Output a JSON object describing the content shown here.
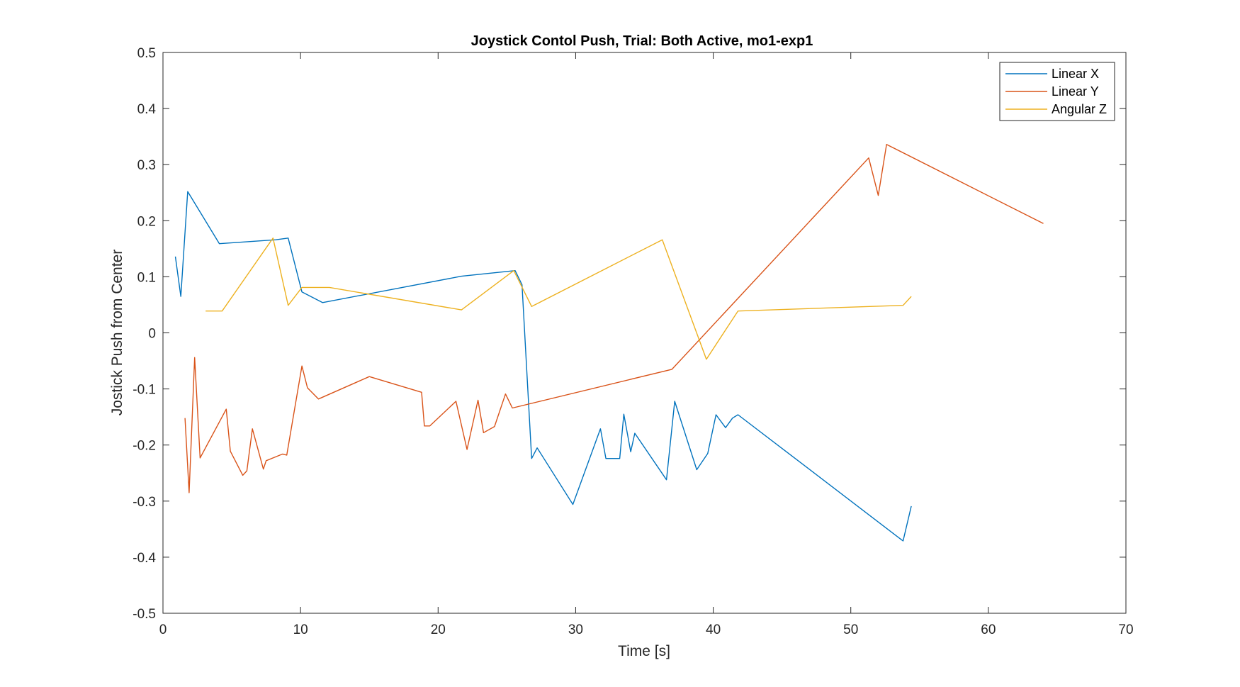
{
  "chart_data": {
    "type": "line",
    "title": "Joystick Contol Push,  Trial: Both Active, mo1-exp1",
    "xlabel": "Time [s]",
    "ylabel": "Jostick Push from Center",
    "xlim": [
      0,
      70
    ],
    "ylim": [
      -0.5,
      0.5
    ],
    "xticks": [
      0,
      10,
      20,
      30,
      40,
      50,
      60,
      70
    ],
    "yticks": [
      -0.5,
      -0.4,
      -0.3,
      -0.2,
      -0.1,
      0,
      0.1,
      0.2,
      0.3,
      0.4,
      0.5
    ],
    "xtick_labels": [
      "0",
      "10",
      "20",
      "30",
      "40",
      "50",
      "60",
      "70"
    ],
    "ytick_labels": [
      "-0.5",
      "-0.4",
      "-0.3",
      "-0.2",
      "-0.1",
      "0",
      "0.1",
      "0.2",
      "0.3",
      "0.4",
      "0.5"
    ],
    "grid": false,
    "legend_position": "top-right",
    "series": [
      {
        "name": "Linear X",
        "color": "#0072BD",
        "x": [
          0.9,
          1.3,
          1.8,
          4.1,
          8.2,
          9.1,
          10.1,
          11.6,
          21.7,
          25.6,
          26.1,
          26.8,
          27.2,
          29.8,
          31.8,
          32.2,
          33.2,
          33.5,
          34.0,
          34.3,
          36.6,
          37.2,
          38.8,
          39.6,
          40.2,
          40.9,
          41.4,
          41.8,
          53.8,
          54.4
        ],
        "y": [
          0.136,
          0.065,
          0.252,
          0.159,
          0.166,
          0.169,
          0.073,
          0.054,
          0.101,
          0.111,
          0.086,
          -0.224,
          -0.205,
          -0.306,
          -0.171,
          -0.224,
          -0.224,
          -0.145,
          -0.212,
          -0.179,
          -0.262,
          -0.122,
          -0.244,
          -0.215,
          -0.146,
          -0.169,
          -0.152,
          -0.146,
          -0.371,
          -0.309
        ]
      },
      {
        "name": "Linear Y",
        "color": "#D95319",
        "x": [
          1.6,
          1.9,
          2.3,
          2.7,
          4.6,
          4.9,
          5.8,
          6.1,
          6.5,
          7.3,
          7.5,
          8.7,
          9.0,
          10.1,
          10.5,
          11.3,
          15.0,
          18.8,
          19.0,
          19.4,
          21.3,
          22.1,
          22.9,
          23.3,
          24.1,
          24.9,
          25.4,
          37.0,
          51.3,
          52.0,
          52.6,
          64.0
        ],
        "y": [
          -0.152,
          -0.285,
          -0.044,
          -0.223,
          -0.136,
          -0.211,
          -0.254,
          -0.246,
          -0.171,
          -0.243,
          -0.228,
          -0.216,
          -0.218,
          -0.059,
          -0.098,
          -0.118,
          -0.078,
          -0.106,
          -0.166,
          -0.166,
          -0.122,
          -0.208,
          -0.12,
          -0.178,
          -0.167,
          -0.109,
          -0.134,
          -0.065,
          0.312,
          0.245,
          0.336,
          0.195
        ]
      },
      {
        "name": "Angular Z",
        "color": "#EDB120",
        "x": [
          3.1,
          4.3,
          8.0,
          9.1,
          10.1,
          12.1,
          21.7,
          25.5,
          26.8,
          36.3,
          39.5,
          41.8,
          53.8,
          54.4
        ],
        "y": [
          0.039,
          0.039,
          0.169,
          0.049,
          0.081,
          0.081,
          0.041,
          0.111,
          0.047,
          0.166,
          -0.047,
          0.039,
          0.049,
          0.065
        ]
      }
    ]
  }
}
